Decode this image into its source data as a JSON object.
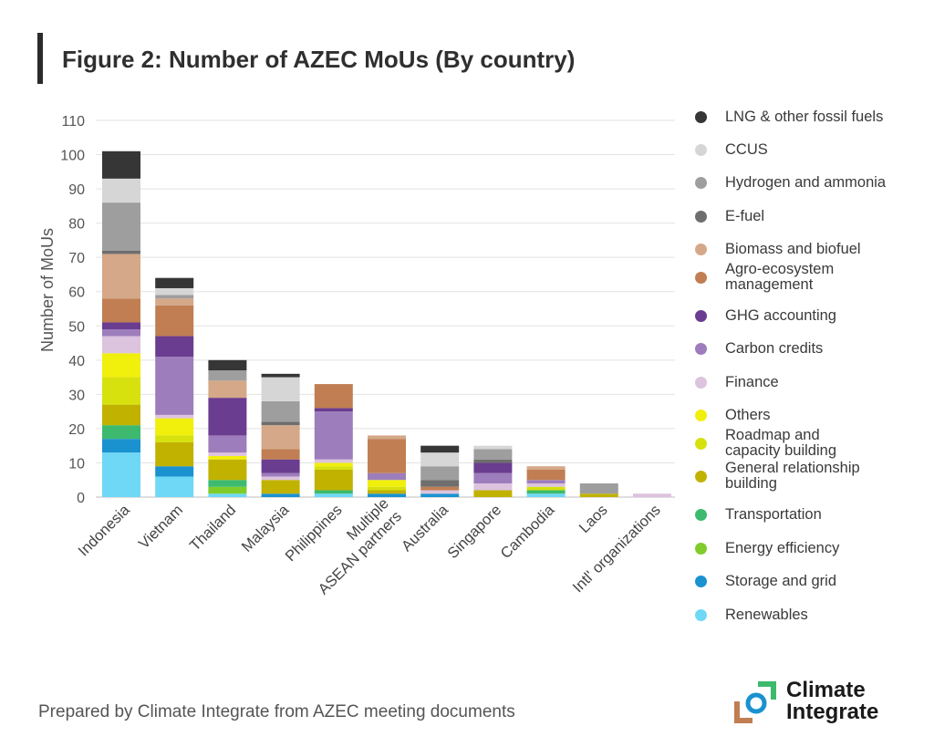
{
  "title": "Figure 2: Number of AZEC MoUs (By country)",
  "footer": "Prepared by Climate Integrate from AZEC meeting documents",
  "logo": {
    "line1": "Climate",
    "line2": "Integrate"
  },
  "chart_data": {
    "type": "bar",
    "stacked": true,
    "title": "Figure 2: Number of AZEC MoUs (By country)",
    "xlabel": "",
    "ylabel": "Number of MoUs",
    "ylim": [
      0,
      110
    ],
    "yticks": [
      0,
      10,
      20,
      30,
      40,
      50,
      60,
      70,
      80,
      90,
      100,
      110
    ],
    "grid": true,
    "legend_position": "right",
    "categories": [
      "Indonesia",
      "Vietnam",
      "Thailand",
      "Malaysia",
      "Philippines",
      "Multiple ASEAN partners",
      "Australia",
      "Singapore",
      "Cambodia",
      "Laos",
      "Intl' organizations"
    ],
    "category_lines": [
      [
        "Indonesia"
      ],
      [
        "Vietnam"
      ],
      [
        "Thailand"
      ],
      [
        "Malaysia"
      ],
      [
        "Philippines"
      ],
      [
        "Multiple",
        "ASEAN partners"
      ],
      [
        "Australia"
      ],
      [
        "Singapore"
      ],
      [
        "Cambodia"
      ],
      [
        "Laos"
      ],
      [
        "Intl' organizations"
      ]
    ],
    "series": [
      {
        "name": "Renewables",
        "color": "#6fd8f6",
        "values": [
          13,
          6,
          1,
          0,
          1,
          0,
          0,
          0,
          1,
          0,
          0
        ]
      },
      {
        "name": "Storage and grid",
        "color": "#1a92cf",
        "values": [
          4,
          3,
          0,
          1,
          0,
          1,
          1,
          0,
          0,
          0,
          0
        ]
      },
      {
        "name": "Energy efficiency",
        "color": "#7fcc2a",
        "values": [
          0,
          0,
          2,
          0,
          0,
          0,
          0,
          0,
          0,
          0,
          0
        ]
      },
      {
        "name": "Transportation",
        "color": "#3dba6e",
        "values": [
          4,
          0,
          2,
          0,
          1,
          0,
          0,
          0,
          1,
          0,
          0
        ]
      },
      {
        "name": "General relationship building",
        "color": "#c2b200",
        "values": [
          6,
          7,
          6,
          4,
          6,
          1,
          0,
          2,
          0,
          1,
          0
        ]
      },
      {
        "name": "Roadmap and capacity building",
        "color": "#d6e10e",
        "values": [
          8,
          2,
          0,
          0,
          1,
          1,
          0,
          0,
          1,
          0,
          0
        ]
      },
      {
        "name": "Others",
        "color": "#f1ef0c",
        "values": [
          7,
          5,
          1,
          0,
          1,
          2,
          0,
          0,
          0,
          0,
          0
        ]
      },
      {
        "name": "Finance",
        "color": "#dcc3de",
        "values": [
          5,
          1,
          1,
          1,
          1,
          0,
          1,
          2,
          1,
          0,
          1
        ]
      },
      {
        "name": "Carbon credits",
        "color": "#9d7dbc",
        "values": [
          2,
          17,
          5,
          1,
          14,
          2,
          0,
          3,
          1,
          0,
          0
        ]
      },
      {
        "name": "GHG accounting",
        "color": "#6a3d90",
        "values": [
          2,
          6,
          11,
          4,
          1,
          0,
          0,
          3,
          0,
          0,
          0
        ]
      },
      {
        "name": "Agro-ecosystem management",
        "color": "#c07e52",
        "values": [
          7,
          9,
          0,
          3,
          7,
          10,
          1,
          0,
          3,
          0,
          0
        ]
      },
      {
        "name": "Biomass and biofuel",
        "color": "#d4a888",
        "values": [
          13,
          2,
          5,
          7,
          0,
          1,
          0,
          0,
          1,
          0,
          0
        ]
      },
      {
        "name": "E-fuel",
        "color": "#6e6e6e",
        "values": [
          1,
          0,
          0,
          1,
          0,
          0,
          2,
          1,
          0,
          0,
          0
        ]
      },
      {
        "name": "Hydrogen and ammonia",
        "color": "#9e9e9e",
        "values": [
          14,
          1,
          3,
          6,
          0,
          0,
          4,
          3,
          0,
          3,
          0
        ]
      },
      {
        "name": "CCUS",
        "color": "#d6d6d6",
        "values": [
          7,
          2,
          0,
          7,
          0,
          0,
          4,
          1,
          0,
          0,
          0
        ]
      },
      {
        "name": "LNG & other fossil fuels",
        "color": "#363636",
        "values": [
          8,
          3,
          3,
          1,
          0,
          0,
          2,
          0,
          0,
          0,
          0
        ]
      }
    ],
    "legend_order": [
      {
        "name": "LNG & other fossil fuels",
        "lines": [
          "LNG & other fossil fuels"
        ]
      },
      {
        "name": "CCUS",
        "lines": [
          "CCUS"
        ]
      },
      {
        "name": "Hydrogen and ammonia",
        "lines": [
          "Hydrogen and ammonia"
        ]
      },
      {
        "name": "E-fuel",
        "lines": [
          "E-fuel"
        ]
      },
      {
        "name": "Biomass and biofuel",
        "lines": [
          "Biomass and biofuel"
        ]
      },
      {
        "name": "Agro-ecosystem management",
        "lines": [
          "Agro-ecosystem",
          "management"
        ]
      },
      {
        "name": "GHG accounting",
        "lines": [
          "GHG accounting"
        ]
      },
      {
        "name": "Carbon credits",
        "lines": [
          "Carbon credits"
        ]
      },
      {
        "name": "Finance",
        "lines": [
          "Finance"
        ]
      },
      {
        "name": "Others",
        "lines": [
          "Others"
        ]
      },
      {
        "name": "Roadmap and capacity building",
        "lines": [
          "Roadmap and",
          "capacity building"
        ]
      },
      {
        "name": "General relationship building",
        "lines": [
          "General relationship",
          "building"
        ]
      },
      {
        "name": "Transportation",
        "lines": [
          "Transportation"
        ]
      },
      {
        "name": "Energy efficiency",
        "lines": [
          "Energy efficiency"
        ]
      },
      {
        "name": "Storage and grid",
        "lines": [
          "Storage and grid"
        ]
      },
      {
        "name": "Renewables",
        "lines": [
          "Renewables"
        ]
      }
    ]
  }
}
